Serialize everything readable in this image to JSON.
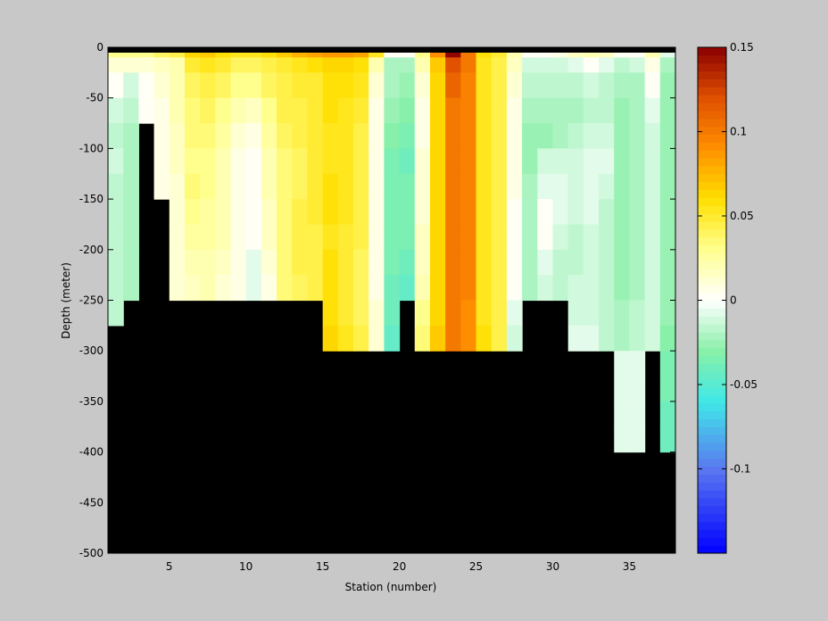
{
  "chart_data": [
    {
      "type": "heatmap",
      "title": "",
      "xlabel": "Station (number)",
      "ylabel": "Depth (meter)",
      "xlim": [
        1,
        38
      ],
      "ylim": [
        -500,
        0
      ],
      "x_ticks": [
        5,
        10,
        15,
        20,
        25,
        30,
        35
      ],
      "x_tick_labels": [
        "5",
        "10",
        "15",
        "20",
        "25",
        "30",
        "35"
      ],
      "y_ticks": [
        0,
        -50,
        -100,
        -150,
        -200,
        -250,
        -300,
        -350,
        -400,
        -450,
        -500
      ],
      "y_tick_labels": [
        "0",
        "-50",
        "-100",
        "-150",
        "-200",
        "-250",
        "-300",
        "-350",
        "-400",
        "-450",
        "-500"
      ],
      "stations": [
        1,
        2,
        3,
        4,
        5,
        6,
        7,
        8,
        9,
        10,
        11,
        12,
        13,
        14,
        15,
        16,
        17,
        18,
        19,
        20,
        21,
        22,
        23,
        24,
        25,
        26,
        27,
        28,
        29,
        30,
        31,
        32,
        33,
        34,
        35,
        36,
        37
      ],
      "depth_bins": [
        0,
        -10,
        -25,
        -50,
        -75,
        -100,
        -125,
        -150,
        -175,
        -200,
        -225,
        -250,
        -275,
        -300,
        -325,
        -350,
        -375,
        -400
      ],
      "bottom_depth": [
        -250,
        -200,
        -75,
        -150,
        -250,
        -250,
        -250,
        -250,
        -250,
        -250,
        -250,
        -250,
        -250,
        -250,
        -300,
        -300,
        -300,
        -300,
        -300,
        -250,
        -300,
        -300,
        -300,
        -300,
        -300,
        -300,
        -300,
        -250,
        -250,
        -250,
        -300,
        -300,
        -400,
        -400,
        -300,
        -400,
        -400
      ],
      "values": [
        [
          0.03,
          0.01,
          0.0,
          -0.01,
          -0.015,
          -0.01,
          -0.015,
          -0.015,
          -0.015,
          -0.015,
          -0.015,
          -0.015,
          null,
          null,
          null,
          null,
          null
        ],
        [
          0.03,
          0.01,
          -0.01,
          -0.015,
          -0.02,
          -0.02,
          -0.02,
          -0.02,
          -0.02,
          -0.02,
          -0.02,
          null,
          null,
          null,
          null,
          null,
          null
        ],
        [
          0.03,
          0.01,
          0.0,
          0.0,
          null,
          null,
          null,
          null,
          null,
          null,
          null,
          null,
          null,
          null,
          null,
          null,
          null
        ],
        [
          0.04,
          0.015,
          0.01,
          0.005,
          0.005,
          0.005,
          0.005,
          null,
          null,
          null,
          null,
          null,
          null,
          null,
          null,
          null,
          null
        ],
        [
          0.045,
          0.02,
          0.02,
          0.02,
          0.015,
          0.015,
          0.01,
          0.01,
          0.01,
          0.01,
          0.01,
          null,
          null,
          null,
          null,
          null,
          null
        ],
        [
          0.065,
          0.05,
          0.04,
          0.035,
          0.035,
          0.03,
          0.035,
          0.03,
          0.025,
          0.02,
          0.015,
          null,
          null,
          null,
          null,
          null,
          null
        ],
        [
          0.07,
          0.055,
          0.045,
          0.04,
          0.035,
          0.03,
          0.03,
          0.025,
          0.025,
          0.02,
          0.02,
          null,
          null,
          null,
          null,
          null,
          null
        ],
        [
          0.06,
          0.05,
          0.04,
          0.03,
          0.025,
          0.02,
          0.02,
          0.02,
          0.02,
          0.015,
          0.01,
          null,
          null,
          null,
          null,
          null,
          null
        ],
        [
          0.055,
          0.04,
          0.03,
          0.02,
          0.01,
          0.005,
          0.005,
          0.005,
          0.005,
          0.005,
          0.005,
          null,
          null,
          null,
          null,
          null,
          null
        ],
        [
          0.055,
          0.04,
          0.03,
          0.015,
          0.005,
          0.0,
          0.0,
          0.0,
          0.0,
          -0.005,
          -0.005,
          null,
          null,
          null,
          null,
          null,
          null
        ],
        [
          0.06,
          0.045,
          0.04,
          0.03,
          0.025,
          0.02,
          0.02,
          0.015,
          0.015,
          0.01,
          0.005,
          null,
          null,
          null,
          null,
          null,
          null
        ],
        [
          0.07,
          0.05,
          0.045,
          0.045,
          0.04,
          0.035,
          0.035,
          0.035,
          0.035,
          0.035,
          0.035,
          null,
          null,
          null,
          null,
          null,
          null
        ],
        [
          0.075,
          0.055,
          0.05,
          0.045,
          0.045,
          0.04,
          0.04,
          0.045,
          0.045,
          0.045,
          0.04,
          null,
          null,
          null,
          null,
          null,
          null
        ],
        [
          0.08,
          0.06,
          0.05,
          0.05,
          0.05,
          0.05,
          0.05,
          0.05,
          0.045,
          0.045,
          0.045,
          null,
          null,
          null,
          null,
          null,
          null
        ],
        [
          0.085,
          0.065,
          0.06,
          0.06,
          0.055,
          0.055,
          0.06,
          0.06,
          0.055,
          0.06,
          0.06,
          0.06,
          0.065,
          null,
          null,
          null,
          null
        ],
        [
          0.085,
          0.065,
          0.06,
          0.055,
          0.055,
          0.055,
          0.055,
          0.055,
          0.05,
          0.05,
          0.05,
          0.05,
          0.055,
          null,
          null,
          null,
          null
        ],
        [
          0.08,
          0.06,
          0.055,
          0.05,
          0.045,
          0.045,
          0.045,
          0.045,
          0.045,
          0.04,
          0.04,
          0.04,
          0.045,
          null,
          null,
          null,
          null
        ],
        [
          0.055,
          0.02,
          0.01,
          0.005,
          0.005,
          0.005,
          0.005,
          0.005,
          0.005,
          0.005,
          0.005,
          0.01,
          0.01,
          null,
          null,
          null,
          null
        ],
        [
          0.0,
          -0.02,
          -0.02,
          -0.025,
          -0.03,
          -0.035,
          -0.035,
          -0.035,
          -0.035,
          -0.035,
          -0.04,
          -0.04,
          -0.045,
          null,
          null,
          null,
          null
        ],
        [
          0.0,
          -0.02,
          -0.025,
          -0.03,
          -0.035,
          -0.04,
          -0.035,
          -0.035,
          -0.035,
          -0.04,
          -0.045,
          null,
          null,
          null,
          null,
          null,
          null
        ],
        [
          0.03,
          0.02,
          0.01,
          0.005,
          0.005,
          0.01,
          0.01,
          0.01,
          0.015,
          0.015,
          0.02,
          0.03,
          0.035,
          null,
          null,
          null,
          null
        ],
        [
          0.09,
          0.07,
          0.065,
          0.065,
          0.065,
          0.065,
          0.065,
          0.065,
          0.065,
          0.065,
          0.065,
          0.065,
          0.07,
          null,
          null,
          null,
          null
        ],
        [
          0.15,
          0.12,
          0.11,
          0.1,
          0.1,
          0.1,
          0.1,
          0.1,
          0.1,
          0.1,
          0.1,
          0.1,
          0.1,
          null,
          null,
          null,
          null
        ],
        [
          0.1,
          0.1,
          0.095,
          0.095,
          0.095,
          0.095,
          0.095,
          0.095,
          0.095,
          0.095,
          0.095,
          0.09,
          0.09,
          null,
          null,
          null,
          null
        ],
        [
          0.06,
          0.055,
          0.055,
          0.055,
          0.055,
          0.055,
          0.055,
          0.055,
          0.055,
          0.055,
          0.055,
          0.055,
          0.06,
          null,
          null,
          null,
          null
        ],
        [
          0.05,
          0.045,
          0.045,
          0.045,
          0.045,
          0.045,
          0.045,
          0.045,
          0.045,
          0.045,
          0.045,
          0.045,
          0.045,
          null,
          null,
          null,
          null
        ],
        [
          0.02,
          0.015,
          0.01,
          0.005,
          0.005,
          0.005,
          0.005,
          0.0,
          0.0,
          0.0,
          0.0,
          -0.005,
          -0.01,
          null,
          null,
          null,
          null
        ],
        [
          0.0,
          -0.01,
          -0.015,
          -0.02,
          -0.025,
          -0.025,
          -0.02,
          -0.02,
          -0.02,
          -0.02,
          -0.02,
          null,
          null,
          null,
          null,
          null,
          null
        ],
        [
          0.0,
          -0.01,
          -0.015,
          -0.02,
          -0.025,
          -0.01,
          -0.005,
          0.0,
          0.0,
          -0.005,
          -0.01,
          null,
          null,
          null,
          null,
          null,
          null
        ],
        [
          0.005,
          -0.01,
          -0.015,
          -0.02,
          -0.02,
          -0.01,
          -0.005,
          -0.005,
          -0.01,
          -0.015,
          -0.015,
          null,
          null,
          null,
          null,
          null,
          null
        ],
        [
          0.015,
          -0.005,
          -0.015,
          -0.02,
          -0.015,
          -0.01,
          -0.01,
          -0.01,
          -0.015,
          -0.015,
          -0.01,
          -0.01,
          -0.005,
          null,
          null,
          null,
          null
        ],
        [
          0.02,
          0.0,
          -0.01,
          -0.015,
          -0.01,
          -0.005,
          -0.005,
          -0.005,
          -0.01,
          -0.01,
          -0.01,
          -0.01,
          -0.005,
          null,
          null,
          null,
          null
        ],
        [
          0.015,
          -0.005,
          -0.015,
          -0.015,
          -0.01,
          -0.005,
          -0.01,
          -0.015,
          -0.015,
          -0.015,
          -0.015,
          -0.015,
          -0.015,
          null,
          null,
          null,
          null
        ],
        [
          0.0,
          -0.015,
          -0.02,
          -0.025,
          -0.025,
          -0.025,
          -0.025,
          -0.025,
          -0.025,
          -0.025,
          -0.025,
          -0.02,
          -0.02,
          -0.005,
          -0.005,
          -0.005,
          -0.005
        ],
        [
          0.0,
          -0.01,
          -0.02,
          -0.02,
          -0.02,
          -0.02,
          -0.02,
          -0.02,
          -0.02,
          -0.02,
          -0.02,
          -0.015,
          -0.015,
          -0.005,
          -0.005,
          -0.005,
          -0.005
        ],
        [
          0.02,
          0.005,
          0.0,
          -0.005,
          -0.01,
          -0.01,
          -0.01,
          -0.01,
          -0.01,
          -0.01,
          -0.01,
          -0.01,
          -0.01,
          null,
          null,
          null,
          null
        ],
        [
          -0.005,
          -0.02,
          -0.025,
          -0.025,
          -0.025,
          -0.025,
          -0.025,
          -0.025,
          -0.025,
          -0.025,
          -0.025,
          -0.025,
          -0.03,
          -0.035,
          -0.035,
          -0.04,
          -0.04
        ]
      ],
      "land_color": "#000000",
      "background_color": "#c8c8c8",
      "colorbar": {
        "range": [
          -0.15,
          0.15
        ],
        "ticks": [
          0.15,
          0.1,
          0.05,
          0,
          -0.05,
          -0.1
        ],
        "tick_labels": [
          "0.15",
          "0.1",
          "0.05",
          "0",
          "-0.05",
          "-0.1"
        ],
        "levels": 64,
        "colormap": [
          [
            -0.15,
            "#0000ff"
          ],
          [
            -0.1,
            "#5a78f0"
          ],
          [
            -0.06,
            "#40e8e8"
          ],
          [
            -0.03,
            "#88f0a8"
          ],
          [
            0.0,
            "#ffffff"
          ],
          [
            0.03,
            "#ffff90"
          ],
          [
            0.06,
            "#ffe000"
          ],
          [
            0.09,
            "#ff9000"
          ],
          [
            0.12,
            "#e05000"
          ],
          [
            0.15,
            "#8a0000"
          ]
        ]
      }
    }
  ]
}
